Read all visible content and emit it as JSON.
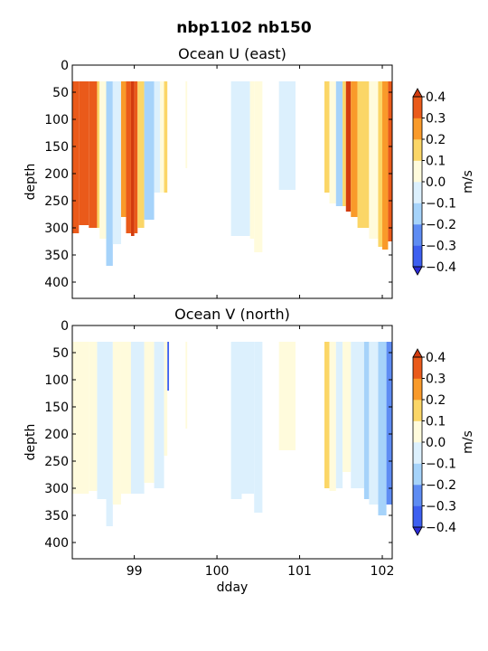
{
  "figure": {
    "suptitle": "nbp1102 nb150",
    "background": "#ffffff"
  },
  "colorbar": {
    "label": "m/s",
    "levels": [
      -0.4,
      -0.3,
      -0.2,
      -0.1,
      0.0,
      0.1,
      0.2,
      0.3,
      0.4
    ],
    "tick_labels": [
      "−0.4",
      "−0.3",
      "−0.2",
      "−0.1",
      "0.0",
      "0.1",
      "0.2",
      "0.3",
      "0.4"
    ],
    "bin_colors": [
      "#3d5ff0",
      "#5e8cf3",
      "#a6d3fa",
      "#dcf0fd",
      "#fffbdc",
      "#fbd667",
      "#f99a2a",
      "#ea5a1a"
    ],
    "under_color": "#2b2bd6",
    "over_color": "#d23b0e",
    "extend": "both"
  },
  "chart_data": [
    {
      "type": "heatmap",
      "title": "Ocean U (east)",
      "xlabel": "",
      "ylabel": "depth",
      "xlim": [
        98.25,
        102.12
      ],
      "ylim": [
        430,
        0
      ],
      "x_ticks": [
        99,
        100,
        101,
        102
      ],
      "x_tick_labels": [
        "",
        "",
        "",
        ""
      ],
      "y_ticks": [
        0,
        50,
        100,
        150,
        200,
        250,
        300,
        350,
        400
      ],
      "y_tick_labels": [
        "0",
        "50",
        "100",
        "150",
        "200",
        "250",
        "300",
        "350",
        "400"
      ],
      "grid": false,
      "units": "m/s",
      "segments": [
        {
          "x0": 98.25,
          "x1": 98.33,
          "top": 30,
          "bottom": 310,
          "value": 0.35
        },
        {
          "x0": 98.33,
          "x1": 98.45,
          "top": 30,
          "bottom": 295,
          "value": 0.3
        },
        {
          "x0": 98.45,
          "x1": 98.55,
          "top": 30,
          "bottom": 300,
          "value": 0.35
        },
        {
          "x0": 98.55,
          "x1": 98.58,
          "top": 30,
          "bottom": 300,
          "value": 0.15
        },
        {
          "x0": 98.58,
          "x1": 98.66,
          "top": 30,
          "bottom": 320,
          "value": 0.05
        },
        {
          "x0": 98.66,
          "x1": 98.74,
          "top": 30,
          "bottom": 370,
          "value": -0.15
        },
        {
          "x0": 98.74,
          "x1": 98.84,
          "top": 30,
          "bottom": 330,
          "value": -0.05
        },
        {
          "x0": 98.84,
          "x1": 98.9,
          "top": 30,
          "bottom": 280,
          "value": 0.25
        },
        {
          "x0": 98.9,
          "x1": 98.96,
          "top": 30,
          "bottom": 310,
          "value": 0.35
        },
        {
          "x0": 98.96,
          "x1": 99.0,
          "top": 30,
          "bottom": 315,
          "value": 0.45
        },
        {
          "x0": 99.0,
          "x1": 99.04,
          "top": 30,
          "bottom": 310,
          "value": 0.35
        },
        {
          "x0": 99.04,
          "x1": 99.12,
          "top": 30,
          "bottom": 300,
          "value": 0.15
        },
        {
          "x0": 99.12,
          "x1": 99.24,
          "top": 30,
          "bottom": 285,
          "value": -0.15
        },
        {
          "x0": 99.24,
          "x1": 99.31,
          "top": 30,
          "bottom": 235,
          "value": -0.05
        },
        {
          "x0": 99.31,
          "x1": 99.36,
          "top": 30,
          "bottom": 235,
          "value": 0.05
        },
        {
          "x0": 99.36,
          "x1": 99.4,
          "top": 30,
          "bottom": 235,
          "value": 0.15
        },
        {
          "x0": 99.62,
          "x1": 99.64,
          "top": 30,
          "bottom": 190,
          "value": 0.05
        },
        {
          "x0": 100.17,
          "x1": 100.4,
          "top": 30,
          "bottom": 315,
          "value": -0.05
        },
        {
          "x0": 100.4,
          "x1": 100.45,
          "top": 30,
          "bottom": 320,
          "value": 0.05
        },
        {
          "x0": 100.45,
          "x1": 100.55,
          "top": 30,
          "bottom": 345,
          "value": 0.05
        },
        {
          "x0": 100.75,
          "x1": 100.95,
          "top": 30,
          "bottom": 230,
          "value": -0.05
        },
        {
          "x0": 101.3,
          "x1": 101.36,
          "top": 30,
          "bottom": 235,
          "value": 0.15
        },
        {
          "x0": 101.36,
          "x1": 101.44,
          "top": 30,
          "bottom": 255,
          "value": 0.05
        },
        {
          "x0": 101.44,
          "x1": 101.52,
          "top": 30,
          "bottom": 260,
          "value": -0.15
        },
        {
          "x0": 101.52,
          "x1": 101.56,
          "top": 30,
          "bottom": 260,
          "value": 0.15
        },
        {
          "x0": 101.56,
          "x1": 101.62,
          "top": 30,
          "bottom": 270,
          "value": 0.45
        },
        {
          "x0": 101.62,
          "x1": 101.7,
          "top": 30,
          "bottom": 280,
          "value": 0.25
        },
        {
          "x0": 101.7,
          "x1": 101.84,
          "top": 30,
          "bottom": 300,
          "value": 0.15
        },
        {
          "x0": 101.84,
          "x1": 101.95,
          "top": 30,
          "bottom": 320,
          "value": 0.05
        },
        {
          "x0": 101.95,
          "x1": 102.0,
          "top": 30,
          "bottom": 335,
          "value": 0.15
        },
        {
          "x0": 102.0,
          "x1": 102.07,
          "top": 30,
          "bottom": 340,
          "value": 0.25
        },
        {
          "x0": 102.07,
          "x1": 102.12,
          "top": 30,
          "bottom": 325,
          "value": 0.3
        }
      ]
    },
    {
      "type": "heatmap",
      "title": "Ocean V (north)",
      "xlabel": "dday",
      "ylabel": "depth",
      "xlim": [
        98.25,
        102.12
      ],
      "ylim": [
        430,
        0
      ],
      "x_ticks": [
        99,
        100,
        101,
        102
      ],
      "x_tick_labels": [
        "99",
        "100",
        "101",
        "102"
      ],
      "y_ticks": [
        0,
        50,
        100,
        150,
        200,
        250,
        300,
        350,
        400
      ],
      "y_tick_labels": [
        "0",
        "50",
        "100",
        "150",
        "200",
        "250",
        "300",
        "350",
        "400"
      ],
      "grid": false,
      "units": "m/s",
      "segments": [
        {
          "x0": 98.25,
          "x1": 98.45,
          "top": 30,
          "bottom": 310,
          "value": 0.05
        },
        {
          "x0": 98.45,
          "x1": 98.55,
          "top": 30,
          "bottom": 305,
          "value": 0.05
        },
        {
          "x0": 98.55,
          "x1": 98.66,
          "top": 30,
          "bottom": 320,
          "value": -0.05
        },
        {
          "x0": 98.66,
          "x1": 98.74,
          "top": 30,
          "bottom": 370,
          "value": -0.05
        },
        {
          "x0": 98.74,
          "x1": 98.84,
          "top": 30,
          "bottom": 330,
          "value": 0.05
        },
        {
          "x0": 98.84,
          "x1": 98.96,
          "top": 30,
          "bottom": 310,
          "value": 0.05
        },
        {
          "x0": 98.96,
          "x1": 99.12,
          "top": 30,
          "bottom": 310,
          "value": -0.05
        },
        {
          "x0": 99.12,
          "x1": 99.24,
          "top": 30,
          "bottom": 290,
          "value": 0.05
        },
        {
          "x0": 99.24,
          "x1": 99.36,
          "top": 30,
          "bottom": 300,
          "value": -0.05
        },
        {
          "x0": 99.36,
          "x1": 99.4,
          "top": 30,
          "bottom": 240,
          "value": 0.05
        },
        {
          "x0": 99.4,
          "x1": 99.42,
          "top": 30,
          "bottom": 120,
          "value": -0.35
        },
        {
          "x0": 99.62,
          "x1": 99.64,
          "top": 30,
          "bottom": 190,
          "value": 0.05
        },
        {
          "x0": 100.17,
          "x1": 100.3,
          "top": 30,
          "bottom": 320,
          "value": -0.05
        },
        {
          "x0": 100.3,
          "x1": 100.45,
          "top": 30,
          "bottom": 310,
          "value": -0.05
        },
        {
          "x0": 100.45,
          "x1": 100.55,
          "top": 30,
          "bottom": 345,
          "value": -0.05
        },
        {
          "x0": 100.75,
          "x1": 100.95,
          "top": 30,
          "bottom": 230,
          "value": 0.05
        },
        {
          "x0": 101.3,
          "x1": 101.36,
          "top": 30,
          "bottom": 300,
          "value": 0.15
        },
        {
          "x0": 101.36,
          "x1": 101.44,
          "top": 30,
          "bottom": 305,
          "value": 0.05
        },
        {
          "x0": 101.44,
          "x1": 101.52,
          "top": 30,
          "bottom": 300,
          "value": -0.05
        },
        {
          "x0": 101.52,
          "x1": 101.62,
          "top": 30,
          "bottom": 270,
          "value": 0.05
        },
        {
          "x0": 101.62,
          "x1": 101.78,
          "top": 30,
          "bottom": 300,
          "value": -0.05
        },
        {
          "x0": 101.78,
          "x1": 101.84,
          "top": 30,
          "bottom": 320,
          "value": -0.15
        },
        {
          "x0": 101.84,
          "x1": 101.95,
          "top": 30,
          "bottom": 330,
          "value": -0.05
        },
        {
          "x0": 101.95,
          "x1": 102.05,
          "top": 30,
          "bottom": 350,
          "value": -0.15
        },
        {
          "x0": 102.05,
          "x1": 102.12,
          "top": 30,
          "bottom": 330,
          "value": -0.25
        }
      ]
    }
  ]
}
